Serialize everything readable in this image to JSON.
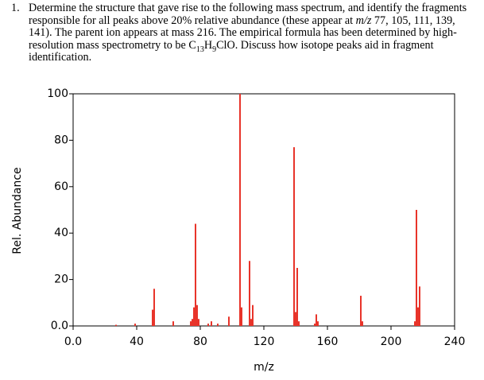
{
  "question": {
    "number": "1.",
    "parts": [
      {
        "text": "Determine the structure that gave rise to the following mass spectrum, and identify the fragments responsible for all peaks above 20% relative abundance (these appear at "
      },
      {
        "text": "m/z",
        "format": "italic"
      },
      {
        "text": " 77, 105, 111, 139, 141).  The parent ion appears at mass 216.  The empirical formula has been determined by high-resolution mass spectrometry to be C"
      },
      {
        "text": "13",
        "format": "sub"
      },
      {
        "text": "H"
      },
      {
        "text": "9",
        "format": "sub"
      },
      {
        "text": "ClO.  Discuss how isotope peaks aid in fragment identification."
      }
    ]
  },
  "chart_data": {
    "type": "bar",
    "x_label": "m/z",
    "y_label": "Rel. Abundance",
    "color": "#e8342a",
    "x": [
      27,
      39,
      50,
      51,
      63,
      74,
      75,
      76,
      77,
      78,
      79,
      85,
      87,
      91,
      98,
      105,
      106,
      111,
      112,
      113,
      139,
      140,
      141,
      142,
      152,
      153,
      154,
      181,
      182,
      215,
      216,
      217,
      218
    ],
    "values": [
      0.5,
      1,
      7,
      16,
      2,
      2,
      3,
      8,
      44,
      9,
      3,
      1,
      2,
      1,
      4,
      100,
      8,
      28,
      3,
      9,
      77,
      6,
      25,
      2,
      1,
      5,
      2,
      13,
      2,
      2,
      50,
      8,
      17
    ],
    "xlim": [
      0,
      240
    ],
    "ylim": [
      0,
      100
    ],
    "xticks": [
      {
        "value": 0,
        "label": "0.0"
      },
      40,
      80,
      120,
      160,
      200,
      240
    ],
    "yticks": [
      {
        "value": 0,
        "label": "0.0"
      },
      20,
      40,
      60,
      80,
      100
    ]
  }
}
